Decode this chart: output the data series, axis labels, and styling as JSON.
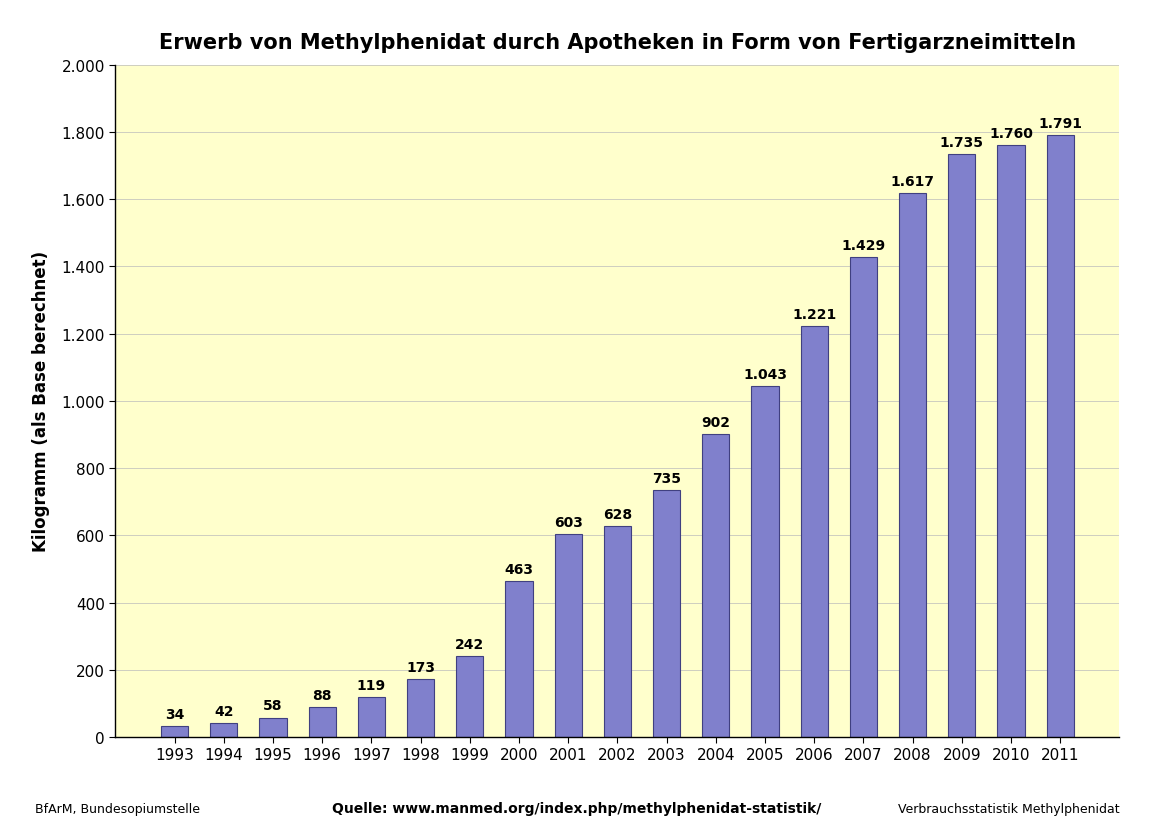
{
  "title": "Erwerb von Methylphenidat durch Apotheken in Form von Fertigarzneimitteln",
  "ylabel": "Kilogramm (als Base berechnet)",
  "xlabel_footer_left": "BfArM, Bundesopiumstelle",
  "xlabel_footer_center": "Quelle: www.manmed.org/index.php/methylphenidat-statistik/",
  "xlabel_footer_right": "Verbrauchsstatistik Methylphenidat",
  "years": [
    1993,
    1994,
    1995,
    1996,
    1997,
    1998,
    1999,
    2000,
    2001,
    2002,
    2003,
    2004,
    2005,
    2006,
    2007,
    2008,
    2009,
    2010,
    2011
  ],
  "values": [
    34,
    42,
    58,
    88,
    119,
    173,
    242,
    463,
    603,
    628,
    735,
    902,
    1043,
    1221,
    1429,
    1617,
    1735,
    1760,
    1791
  ],
  "bar_color": "#8080cc",
  "bar_edgecolor": "#404080",
  "background_color": "#FFFFCC",
  "ylim": [
    0,
    2000
  ],
  "yticks": [
    0,
    200,
    400,
    600,
    800,
    1000,
    1200,
    1400,
    1600,
    1800,
    2000
  ],
  "ytick_labels": [
    "0",
    "200",
    "400",
    "600",
    "800",
    "1.000",
    "1.200",
    "1.400",
    "1.600",
    "1.800",
    "2.000"
  ],
  "title_fontsize": 15,
  "axis_label_fontsize": 12,
  "tick_fontsize": 11,
  "bar_label_fontsize": 10,
  "footer_fontsize": 9,
  "bar_width": 0.55
}
